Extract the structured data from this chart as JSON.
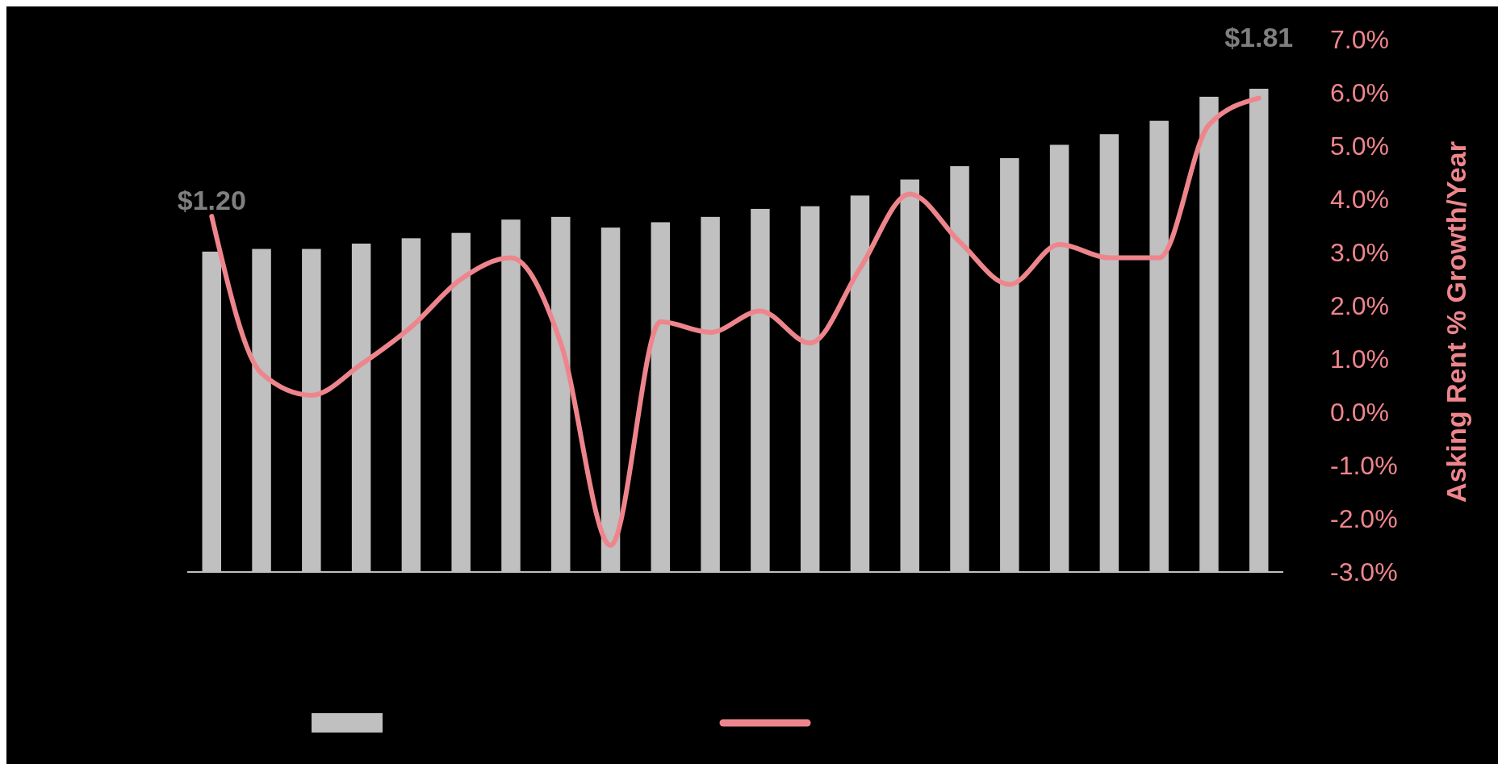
{
  "chart_data": {
    "type": "bar",
    "categories": [
      null,
      null,
      null,
      null,
      null,
      null,
      null,
      null,
      null,
      null,
      null,
      null,
      null,
      null,
      null,
      null,
      null,
      null,
      null,
      null,
      null,
      null
    ],
    "series": [
      {
        "color": "#c0c0c0",
        "values": [
          1.2,
          1.21,
          1.21,
          1.23,
          1.25,
          1.27,
          1.32,
          1.33,
          1.29,
          1.31,
          1.33,
          1.36,
          1.37,
          1.41,
          1.47,
          1.52,
          1.55,
          1.6,
          1.64,
          1.69,
          1.78,
          1.81
        ],
        "value_labels": [
          "$1.20",
          null,
          null,
          null,
          null,
          null,
          null,
          null,
          null,
          null,
          null,
          null,
          null,
          null,
          null,
          null,
          null,
          null,
          null,
          null,
          null,
          "$1.81"
        ]
      },
      {
        "type": "line",
        "axis": "y2",
        "color": "#ee858c",
        "values": [
          3.68,
          0.73,
          0.32,
          0.9,
          1.6,
          2.5,
          2.9,
          1.3,
          -2.5,
          1.7,
          1.5,
          1.9,
          1.3,
          2.7,
          4.1,
          3.2,
          2.4,
          3.15,
          2.9,
          2.9,
          5.4,
          5.9
        ]
      }
    ],
    "y2label": "Asking Rent % Growth/Year",
    "y2lim": [
      -3,
      7
    ],
    "y2ticks": [
      {
        "value": -3,
        "label": "-3.0%"
      },
      {
        "value": -2,
        "label": "-2.0%"
      },
      {
        "value": -1,
        "label": "-1.0%"
      },
      {
        "value": 0,
        "label": "0.0%"
      },
      {
        "value": 1,
        "label": "1.0%"
      },
      {
        "value": 2,
        "label": "2.0%"
      },
      {
        "value": 3,
        "label": "3.0%"
      },
      {
        "value": 4,
        "label": "4.0%"
      },
      {
        "value": 5,
        "label": "5.0%"
      },
      {
        "value": 6,
        "label": "6.0%"
      },
      {
        "value": 7,
        "label": "7.0%"
      }
    ],
    "tick_labels": "y"
  }
}
